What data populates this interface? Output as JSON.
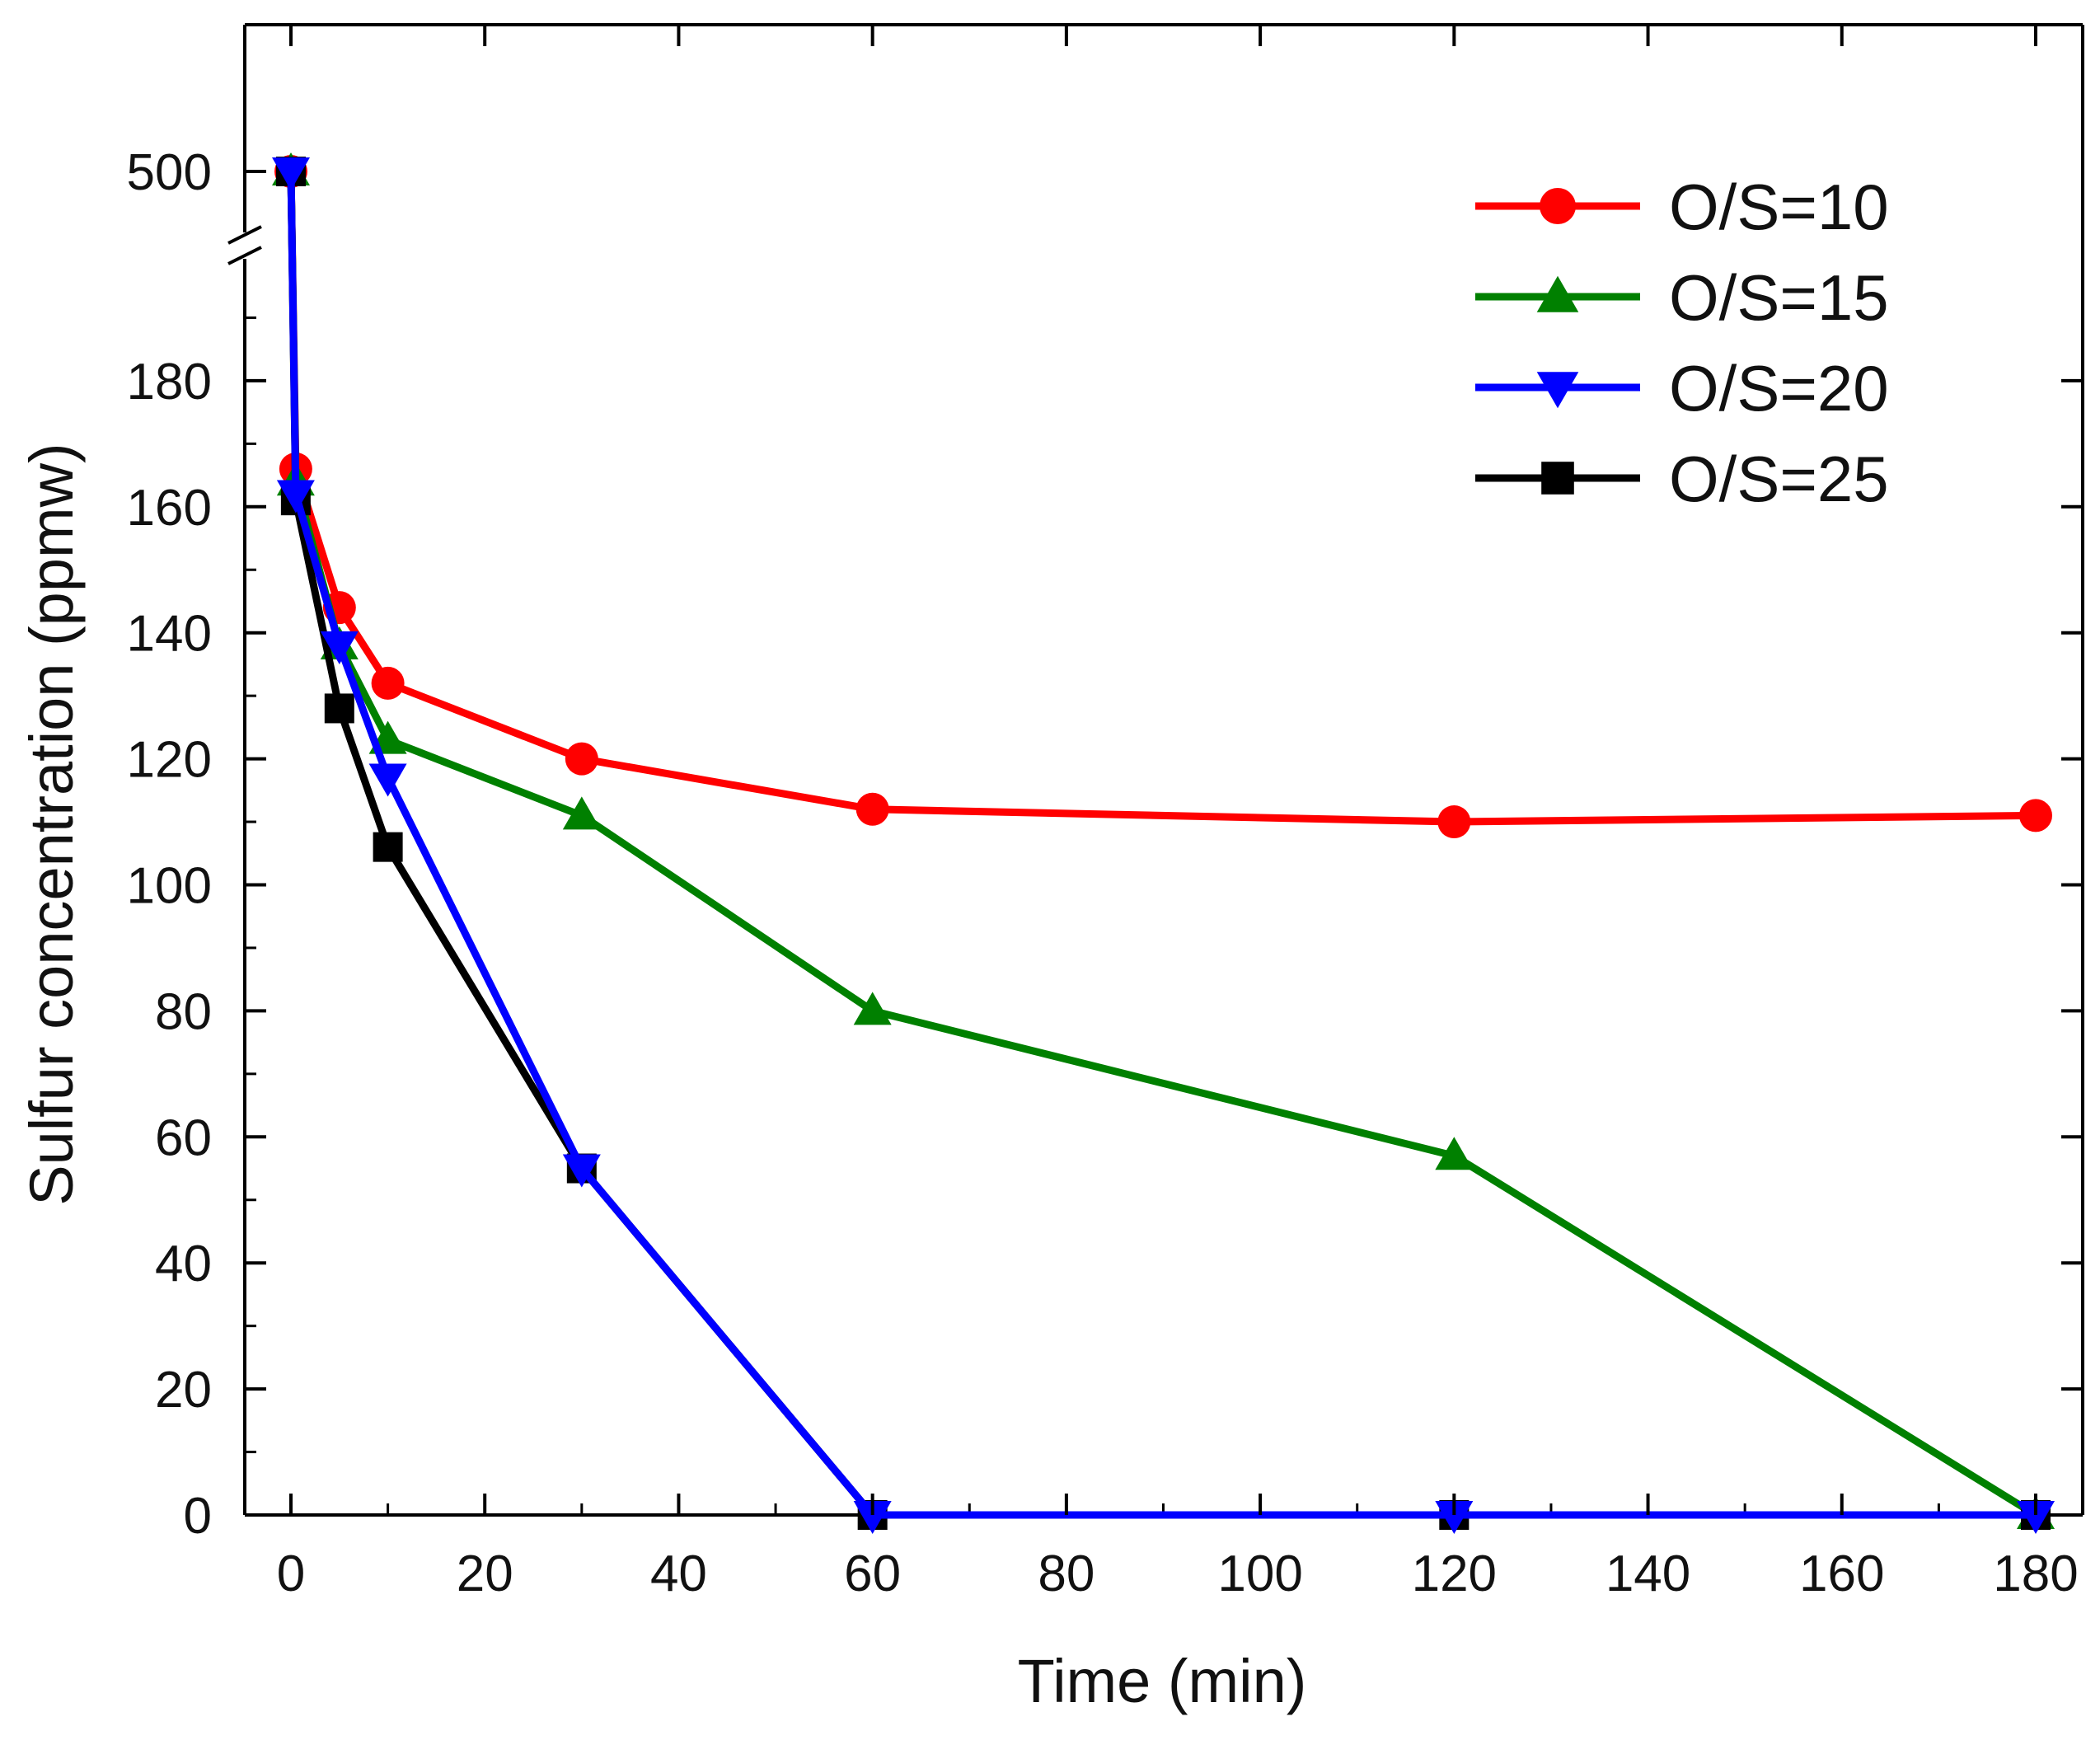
{
  "chart_data": {
    "type": "line",
    "title": "",
    "xlabel": "Time (min)",
    "ylabel": "Sulfur concentration (ppmw)",
    "xlim": [
      -5,
      185
    ],
    "ylim": [
      0,
      200
    ],
    "y_break": {
      "lower_max": 200,
      "upper_tick": 500
    },
    "x_ticks": [
      0,
      20,
      40,
      60,
      80,
      100,
      120,
      140,
      160,
      180
    ],
    "y_ticks": [
      0,
      20,
      40,
      60,
      80,
      100,
      120,
      140,
      160,
      180
    ],
    "y_upper_ticks": [
      500
    ],
    "legend_position": "top-right",
    "series": [
      {
        "name": "O/S=10",
        "color": "#ff0000",
        "marker": "circle",
        "x": [
          0,
          0.5,
          5,
          10,
          30,
          60,
          120,
          180
        ],
        "y": [
          500,
          166,
          144,
          132,
          120,
          112,
          110,
          111
        ]
      },
      {
        "name": "O/S=15",
        "color": "#008000",
        "marker": "triangle-up",
        "x": [
          0,
          0.5,
          5,
          10,
          30,
          60,
          120,
          180
        ],
        "y": [
          500,
          164,
          138,
          123,
          111,
          80,
          57,
          0
        ]
      },
      {
        "name": "O/S=25",
        "color": "#000000",
        "marker": "square",
        "x": [
          0,
          0.5,
          5,
          10,
          30,
          60,
          120,
          180
        ],
        "y": [
          500,
          161,
          128,
          106,
          55,
          0,
          0,
          0
        ]
      },
      {
        "name": "O/S=20",
        "color": "#0000ff",
        "marker": "triangle-down",
        "x": [
          0,
          0.5,
          5,
          10,
          30,
          60,
          120,
          180
        ],
        "y": [
          500,
          162,
          138,
          117,
          55,
          0,
          0,
          0
        ]
      }
    ],
    "legend_order": [
      "O/S=10",
      "O/S=15",
      "O/S=20",
      "O/S=25"
    ]
  }
}
